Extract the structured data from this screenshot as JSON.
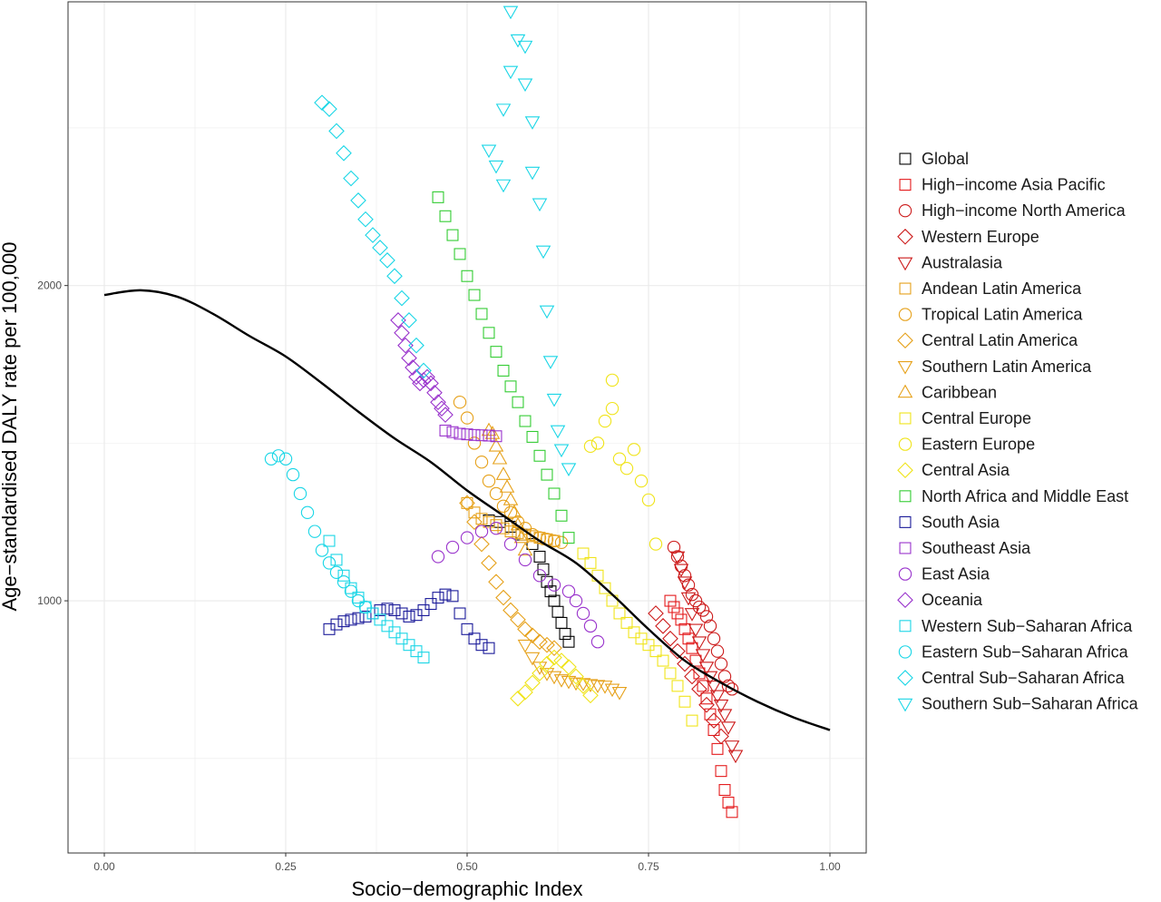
{
  "chart_data": {
    "type": "scatter",
    "title": "",
    "xlabel": "Socio−demographic Index",
    "ylabel": "Age−standardised DALY rate per 100,000",
    "xlim": [
      -0.05,
      1.05
    ],
    "ylim": [
      200,
      2900
    ],
    "x_ticks": [
      {
        "value": 0.0,
        "label": "0.00"
      },
      {
        "value": 0.25,
        "label": "0.25"
      },
      {
        "value": 0.5,
        "label": "0.50"
      },
      {
        "value": 0.75,
        "label": "0.75"
      },
      {
        "value": 1.0,
        "label": "1.00"
      }
    ],
    "y_ticks": [
      {
        "value": 1000,
        "label": "1000"
      },
      {
        "value": 2000,
        "label": "2000"
      }
    ],
    "grid": true,
    "legend_position": "right",
    "expected_curve": {
      "name": "",
      "color": "#000000",
      "x": [
        0.0,
        0.05,
        0.1,
        0.15,
        0.2,
        0.25,
        0.3,
        0.35,
        0.4,
        0.45,
        0.5,
        0.55,
        0.6,
        0.65,
        0.7,
        0.75,
        0.8,
        0.85,
        0.9,
        0.95,
        1.0
      ],
      "y": [
        1970,
        1985,
        1965,
        1910,
        1840,
        1775,
        1690,
        1600,
        1515,
        1440,
        1350,
        1270,
        1190,
        1120,
        1020,
        910,
        810,
        740,
        680,
        630,
        590
      ]
    },
    "series": [
      {
        "name": "Global",
        "shape": "square",
        "color": "#000000",
        "x": [
          0.53,
          0.545,
          0.56,
          0.575,
          0.59,
          0.6,
          0.605,
          0.61,
          0.615,
          0.62,
          0.625,
          0.63,
          0.635,
          0.64
        ],
        "y": [
          1255,
          1250,
          1235,
          1210,
          1180,
          1140,
          1100,
          1060,
          1030,
          1000,
          965,
          930,
          895,
          870
        ]
      },
      {
        "name": "High−income Asia Pacific",
        "shape": "square",
        "color": "#e41a1c",
        "x": [
          0.78,
          0.785,
          0.79,
          0.795,
          0.8,
          0.805,
          0.81,
          0.815,
          0.82,
          0.825,
          0.83,
          0.835,
          0.84,
          0.845,
          0.85,
          0.855,
          0.86,
          0.865
        ],
        "y": [
          1000,
          980,
          960,
          940,
          910,
          880,
          850,
          810,
          770,
          730,
          690,
          640,
          590,
          530,
          460,
          400,
          360,
          330
        ]
      },
      {
        "name": "High−income North America",
        "shape": "circle",
        "color": "#cc1b1b",
        "x": [
          0.785,
          0.79,
          0.795,
          0.8,
          0.805,
          0.81,
          0.815,
          0.82,
          0.825,
          0.83,
          0.835,
          0.84,
          0.845,
          0.85,
          0.855,
          0.86,
          0.865
        ],
        "y": [
          1170,
          1140,
          1110,
          1080,
          1050,
          1020,
          1000,
          980,
          970,
          950,
          920,
          880,
          840,
          800,
          760,
          730,
          720
        ]
      },
      {
        "name": "Western Europe",
        "shape": "diamond",
        "color": "#cc1b1b",
        "x": [
          0.76,
          0.77,
          0.78,
          0.79,
          0.8,
          0.81,
          0.82,
          0.83,
          0.84,
          0.85
        ],
        "y": [
          960,
          920,
          880,
          840,
          800,
          760,
          720,
          670,
          620,
          570
        ]
      },
      {
        "name": "Australasia",
        "shape": "triangle-down",
        "color": "#cc1b1b",
        "x": [
          0.79,
          0.795,
          0.8,
          0.805,
          0.81,
          0.815,
          0.82,
          0.825,
          0.83,
          0.835,
          0.84,
          0.845,
          0.85,
          0.855,
          0.86,
          0.865,
          0.87
        ],
        "y": [
          1140,
          1100,
          1060,
          1010,
          960,
          910,
          870,
          830,
          790,
          760,
          730,
          700,
          670,
          640,
          600,
          540,
          510
        ]
      },
      {
        "name": "Andean Latin America",
        "shape": "square",
        "color": "#e6a11a",
        "x": [
          0.5,
          0.51,
          0.52,
          0.53,
          0.54,
          0.55,
          0.56,
          0.57,
          0.58,
          0.59,
          0.6,
          0.61,
          0.62
        ],
        "y": [
          1310,
          1280,
          1260,
          1250,
          1240,
          1230,
          1220,
          1215,
          1210,
          1205,
          1200,
          1195,
          1190
        ]
      },
      {
        "name": "Tropical Latin America",
        "shape": "circle",
        "color": "#e6a11a",
        "x": [
          0.49,
          0.5,
          0.51,
          0.52,
          0.53,
          0.54,
          0.55,
          0.56,
          0.57,
          0.58,
          0.59,
          0.6,
          0.61,
          0.62,
          0.63
        ],
        "y": [
          1630,
          1580,
          1500,
          1440,
          1380,
          1340,
          1300,
          1280,
          1250,
          1230,
          1210,
          1200,
          1195,
          1190,
          1185
        ]
      },
      {
        "name": "Central Latin America",
        "shape": "diamond",
        "color": "#e6a11a",
        "x": [
          0.5,
          0.51,
          0.52,
          0.53,
          0.54,
          0.55,
          0.56,
          0.57,
          0.58,
          0.59,
          0.6,
          0.61,
          0.62
        ],
        "y": [
          1310,
          1250,
          1180,
          1120,
          1060,
          1010,
          970,
          940,
          910,
          890,
          870,
          860,
          850
        ]
      },
      {
        "name": "Southern Latin America",
        "shape": "triangle-down",
        "color": "#e6a11a",
        "x": [
          0.58,
          0.59,
          0.6,
          0.61,
          0.62,
          0.63,
          0.64,
          0.65,
          0.66,
          0.67,
          0.68,
          0.69,
          0.7,
          0.71
        ],
        "y": [
          860,
          820,
          790,
          770,
          760,
          750,
          745,
          740,
          738,
          735,
          732,
          730,
          720,
          710
        ]
      },
      {
        "name": "Caribbean",
        "shape": "triangle-up",
        "color": "#e6a11a",
        "x": [
          0.53,
          0.535,
          0.54,
          0.545,
          0.55,
          0.555,
          0.56,
          0.565,
          0.57,
          0.575,
          0.58
        ],
        "y": [
          1540,
          1530,
          1490,
          1450,
          1400,
          1360,
          1320,
          1280,
          1240,
          1200,
          1160
        ]
      },
      {
        "name": "Central Europe",
        "shape": "square",
        "color": "#f0e41a",
        "x": [
          0.66,
          0.67,
          0.68,
          0.69,
          0.7,
          0.71,
          0.72,
          0.73,
          0.74,
          0.75,
          0.76,
          0.77,
          0.78,
          0.79,
          0.8,
          0.81
        ],
        "y": [
          1150,
          1120,
          1080,
          1040,
          1000,
          960,
          930,
          900,
          880,
          860,
          840,
          810,
          770,
          730,
          680,
          620
        ]
      },
      {
        "name": "Eastern Europe",
        "shape": "circle",
        "color": "#f0e41a",
        "x": [
          0.67,
          0.68,
          0.69,
          0.7,
          0.7,
          0.71,
          0.72,
          0.73,
          0.74,
          0.75,
          0.76
        ],
        "y": [
          1490,
          1500,
          1570,
          1610,
          1700,
          1450,
          1420,
          1480,
          1380,
          1320,
          1180
        ]
      },
      {
        "name": "Central Asia",
        "shape": "diamond",
        "color": "#f0e41a",
        "x": [
          0.57,
          0.58,
          0.59,
          0.6,
          0.61,
          0.62,
          0.63,
          0.64,
          0.65,
          0.66,
          0.67
        ],
        "y": [
          690,
          710,
          740,
          770,
          800,
          820,
          810,
          790,
          760,
          730,
          700
        ]
      },
      {
        "name": "North Africa and Middle East",
        "shape": "square",
        "color": "#33cc33",
        "x": [
          0.46,
          0.47,
          0.48,
          0.49,
          0.5,
          0.51,
          0.52,
          0.53,
          0.54,
          0.55,
          0.56,
          0.57,
          0.58,
          0.59,
          0.6,
          0.61,
          0.62,
          0.63,
          0.64
        ],
        "y": [
          2280,
          2220,
          2160,
          2100,
          2030,
          1970,
          1910,
          1850,
          1790,
          1730,
          1680,
          1630,
          1570,
          1520,
          1460,
          1400,
          1340,
          1270,
          1200
        ]
      },
      {
        "name": "South Asia",
        "shape": "square",
        "color": "#1a1a99",
        "x": [
          0.31,
          0.32,
          0.33,
          0.34,
          0.35,
          0.36,
          0.37,
          0.38,
          0.39,
          0.4,
          0.41,
          0.42,
          0.43,
          0.44,
          0.45,
          0.46,
          0.47,
          0.48,
          0.49,
          0.5,
          0.51,
          0.52,
          0.53
        ],
        "y": [
          910,
          925,
          935,
          940,
          945,
          950,
          960,
          970,
          975,
          970,
          960,
          950,
          955,
          970,
          990,
          1010,
          1020,
          1015,
          960,
          910,
          880,
          860,
          850
        ]
      },
      {
        "name": "Southeast Asia",
        "shape": "square",
        "color": "#9933cc",
        "x": [
          0.47,
          0.48,
          0.49,
          0.5,
          0.51,
          0.52,
          0.53,
          0.54
        ],
        "y": [
          1540,
          1535,
          1530,
          1528,
          1526,
          1525,
          1524,
          1522
        ]
      },
      {
        "name": "East Asia",
        "shape": "circle",
        "color": "#9933cc",
        "x": [
          0.46,
          0.48,
          0.5,
          0.52,
          0.54,
          0.56,
          0.58,
          0.6,
          0.62,
          0.64,
          0.65,
          0.66,
          0.67,
          0.68
        ],
        "y": [
          1140,
          1170,
          1200,
          1220,
          1230,
          1180,
          1130,
          1080,
          1050,
          1030,
          1000,
          960,
          920,
          870
        ]
      },
      {
        "name": "Oceania",
        "shape": "diamond",
        "color": "#9933cc",
        "x": [
          0.405,
          0.41,
          0.415,
          0.42,
          0.425,
          0.43,
          0.435,
          0.44,
          0.445,
          0.45,
          0.455,
          0.46,
          0.465,
          0.47
        ],
        "y": [
          1890,
          1850,
          1810,
          1770,
          1740,
          1710,
          1690,
          1700,
          1710,
          1690,
          1660,
          1630,
          1610,
          1590
        ]
      },
      {
        "name": "Western Sub−Saharan Africa",
        "shape": "square",
        "color": "#1ad6e6",
        "x": [
          0.31,
          0.32,
          0.33,
          0.34,
          0.35,
          0.36,
          0.37,
          0.38,
          0.39,
          0.4,
          0.41,
          0.42,
          0.43,
          0.44
        ],
        "y": [
          1190,
          1130,
          1080,
          1040,
          1010,
          980,
          960,
          940,
          920,
          900,
          880,
          860,
          840,
          820
        ]
      },
      {
        "name": "Eastern Sub−Saharan Africa",
        "shape": "circle",
        "color": "#1ad6e6",
        "x": [
          0.23,
          0.24,
          0.25,
          0.26,
          0.27,
          0.28,
          0.29,
          0.3,
          0.31,
          0.32,
          0.33,
          0.34,
          0.35,
          0.36
        ],
        "y": [
          1450,
          1460,
          1450,
          1400,
          1340,
          1280,
          1220,
          1160,
          1120,
          1090,
          1060,
          1030,
          1000,
          980
        ]
      },
      {
        "name": "Central Sub−Saharan Africa",
        "shape": "diamond",
        "color": "#1ad6e6",
        "x": [
          0.3,
          0.31,
          0.32,
          0.33,
          0.34,
          0.35,
          0.36,
          0.37,
          0.38,
          0.39,
          0.4,
          0.41,
          0.42,
          0.43,
          0.44
        ],
        "y": [
          2580,
          2560,
          2490,
          2420,
          2340,
          2270,
          2210,
          2160,
          2120,
          2080,
          2030,
          1960,
          1890,
          1810,
          1730
        ]
      },
      {
        "name": "Southern Sub−Saharan Africa",
        "shape": "triangle-down",
        "color": "#1ad6e6",
        "x": [
          0.56,
          0.57,
          0.58,
          0.56,
          0.58,
          0.55,
          0.59,
          0.53,
          0.54,
          0.55,
          0.59,
          0.6,
          0.605,
          0.61,
          0.615,
          0.62,
          0.625,
          0.63,
          0.64
        ],
        "y": [
          2870,
          2780,
          2760,
          2680,
          2640,
          2560,
          2520,
          2430,
          2380,
          2320,
          2360,
          2260,
          2110,
          1920,
          1760,
          1640,
          1540,
          1480,
          1420
        ]
      }
    ]
  }
}
